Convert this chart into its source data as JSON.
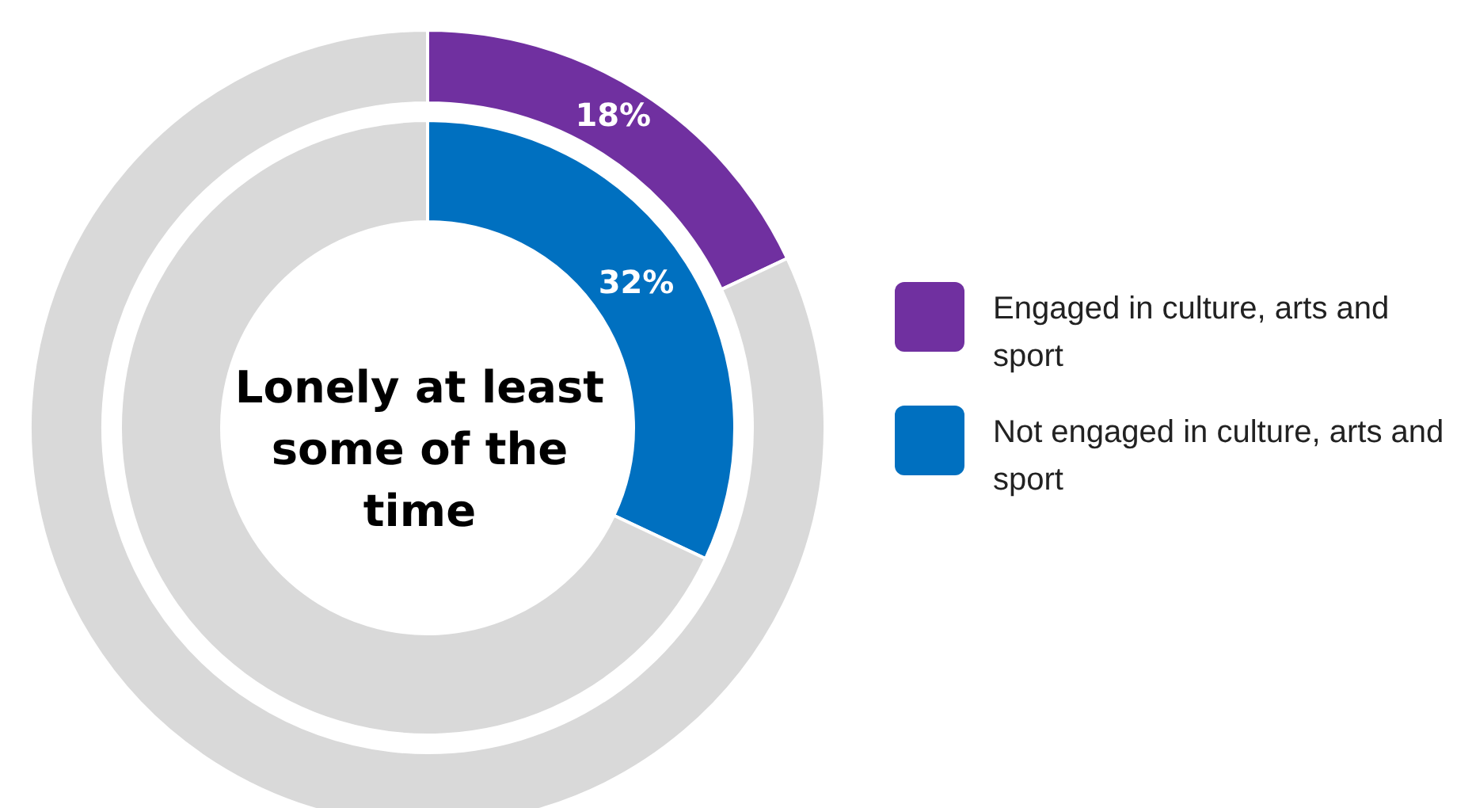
{
  "chart_data": {
    "type": "donut",
    "title": "Lonely at least some of the time",
    "categories": [
      null,
      null
    ],
    "series": [
      {
        "name": "Engaged in culture, arts and sport",
        "colors": [
          "#7030a0",
          "#d9d9d9"
        ],
        "values": [
          18,
          82
        ],
        "value_labels": [
          "18%",
          null
        ]
      },
      {
        "name": "Not engaged in culture, arts and sport",
        "colors": [
          "#0070c0",
          "#d9d9d9"
        ],
        "values": [
          32,
          68
        ],
        "value_labels": [
          "32%",
          null
        ]
      }
    ],
    "legend": "right"
  }
}
